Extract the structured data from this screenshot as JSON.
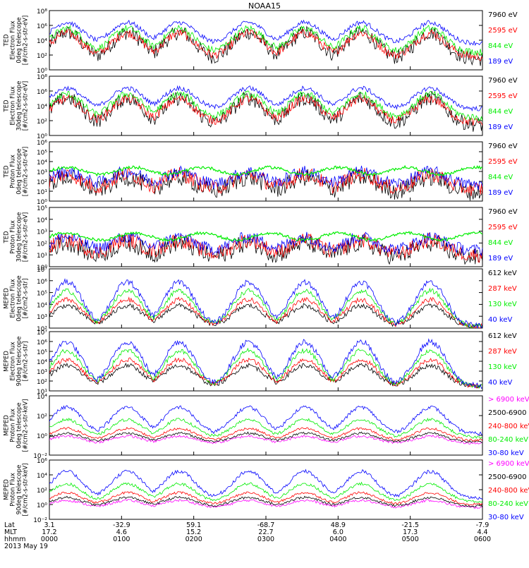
{
  "title": "NOAA15",
  "colors": {
    "blue": "#0000ff",
    "red": "#ff0000",
    "green": "#00ee00",
    "black": "#000000",
    "magenta": "#ff00ff"
  },
  "chart_data": [
    {
      "type": "line",
      "ylabel": [
        "TED",
        "Electron Flux",
        "0deg telescope",
        "[#/cm2-s-str-eV]"
      ],
      "yticks": [
        "10⁰",
        "10²",
        "10⁴",
        "10⁶",
        "10⁸"
      ],
      "ylim": [
        0,
        8
      ],
      "style": "electron",
      "legend": [
        {
          "label": "7960 eV",
          "color": "#000000"
        },
        {
          "label": "2595 eV",
          "color": "#ff0000"
        },
        {
          "label": "844 eV",
          "color": "#00ee00"
        },
        {
          "label": "189 eV",
          "color": "#0000ff"
        }
      ]
    },
    {
      "type": "line",
      "ylabel": [
        "TED",
        "Electron Flux",
        "30deg telescope",
        "[#/cm2-s-str-eV]"
      ],
      "yticks": [
        "10⁰",
        "10²",
        "10⁴",
        "10⁶",
        "10⁸"
      ],
      "ylim": [
        0,
        8
      ],
      "style": "electron",
      "legend": [
        {
          "label": "7960 eV",
          "color": "#000000"
        },
        {
          "label": "2595 eV",
          "color": "#ff0000"
        },
        {
          "label": "844 eV",
          "color": "#00ee00"
        },
        {
          "label": "189 eV",
          "color": "#0000ff"
        }
      ]
    },
    {
      "type": "line",
      "ylabel": [
        "TED",
        "Proton Flux",
        "0deg telescope",
        "[#/cm2-s-str-eV]"
      ],
      "yticks": [
        "10⁰",
        "10¹",
        "10²",
        "10³",
        "10⁴",
        "10⁵",
        "10⁶"
      ],
      "ylim": [
        0,
        6
      ],
      "style": "proton",
      "legend": [
        {
          "label": "7960 eV",
          "color": "#000000"
        },
        {
          "label": "2595 eV",
          "color": "#ff0000"
        },
        {
          "label": "844 eV",
          "color": "#00ee00"
        },
        {
          "label": "189 eV",
          "color": "#0000ff"
        }
      ]
    },
    {
      "type": "line",
      "ylabel": [
        "TED",
        "Proton Flux",
        "30deg telescope",
        "[#/cm2-s-str-eV]"
      ],
      "yticks": [
        "10⁰",
        "10¹",
        "10²",
        "10³",
        "10⁴",
        "10⁵"
      ],
      "ylim": [
        0,
        5
      ],
      "style": "proton",
      "legend": [
        {
          "label": "7960 eV",
          "color": "#000000"
        },
        {
          "label": "2595 eV",
          "color": "#ff0000"
        },
        {
          "label": "844 eV",
          "color": "#00ee00"
        },
        {
          "label": "189 eV",
          "color": "#0000ff"
        }
      ]
    },
    {
      "type": "line",
      "ylabel": [
        "MEPED",
        "Electron Flux",
        "0deg telescope",
        "[#/cm2-s-str]"
      ],
      "yticks": [
        "10²",
        "10³",
        "10⁴",
        "10⁵",
        "10⁶",
        "10⁷"
      ],
      "ylim": [
        2,
        7
      ],
      "style": "meped_e0",
      "legend": [
        {
          "label": "612 keV",
          "color": "#000000"
        },
        {
          "label": "287 keV",
          "color": "#ff0000"
        },
        {
          "label": "130 keV",
          "color": "#00ee00"
        },
        {
          "label": "40 keV",
          "color": "#0000ff"
        }
      ]
    },
    {
      "type": "line",
      "ylabel": [
        "MEPED",
        "Electron Flux",
        "90deg telescope",
        "[#/cm2-s-str]"
      ],
      "yticks": [
        "10¹",
        "10²",
        "10³",
        "10⁴",
        "10⁵",
        "10⁶",
        "10⁷"
      ],
      "ylim": [
        1,
        7
      ],
      "style": "meped_e90",
      "legend": [
        {
          "label": "612 keV",
          "color": "#000000"
        },
        {
          "label": "287 keV",
          "color": "#ff0000"
        },
        {
          "label": "130 keV",
          "color": "#00ee00"
        },
        {
          "label": "40 keV",
          "color": "#0000ff"
        }
      ]
    },
    {
      "type": "line",
      "ylabel": [
        "MEPED",
        "Proton Flux",
        "0deg telescope",
        "[#/cm2-s-str-keV]"
      ],
      "yticks": [
        "10⁻²",
        "10⁰",
        "10²",
        "10⁴"
      ],
      "ylim": [
        -2,
        5
      ],
      "style": "meped_p",
      "legend": [
        {
          "label": "> 6900 keV",
          "color": "#ff00ff"
        },
        {
          "label": "2500-6900",
          "color": "#000000"
        },
        {
          "label": "240-800 keV",
          "color": "#ff0000"
        },
        {
          "label": "80-240 keV",
          "color": "#00ee00"
        },
        {
          "label": "30-80 keV",
          "color": "#0000ff"
        }
      ]
    },
    {
      "type": "line",
      "ylabel": [
        "MEPED",
        "Proton Flux",
        "90deg telescope",
        "[#/cm2-s-str-keV]"
      ],
      "yticks": [
        "10⁻²",
        "10⁰",
        "10²",
        "10⁴",
        "10⁶"
      ],
      "ylim": [
        -2,
        6
      ],
      "style": "meped_p",
      "legend": [
        {
          "label": "> 6900 keV",
          "color": "#ff00ff"
        },
        {
          "label": "2500-6900",
          "color": "#000000"
        },
        {
          "label": "240-800 keV",
          "color": "#ff0000"
        },
        {
          "label": "80-240 keV",
          "color": "#00ee00"
        },
        {
          "label": "30-80 keV",
          "color": "#0000ff"
        }
      ]
    }
  ],
  "xaxis": {
    "row_labels": [
      "Lat",
      "MLT",
      "hhmm",
      "2013 May 19"
    ],
    "ticks": [
      {
        "lat": "3.1",
        "mlt": "17.2",
        "hhmm": "0000"
      },
      {
        "lat": "-32.9",
        "mlt": "4.6",
        "hhmm": "0100"
      },
      {
        "lat": "59.1",
        "mlt": "15.2",
        "hhmm": "0200"
      },
      {
        "lat": "-68.7",
        "mlt": "22.7",
        "hhmm": "0300"
      },
      {
        "lat": "48.9",
        "mlt": "6.0",
        "hhmm": "0400"
      },
      {
        "lat": "-21.5",
        "mlt": "17.3",
        "hhmm": "0500"
      },
      {
        "lat": "-7.9",
        "mlt": "4.4",
        "hhmm": "0600"
      }
    ]
  }
}
